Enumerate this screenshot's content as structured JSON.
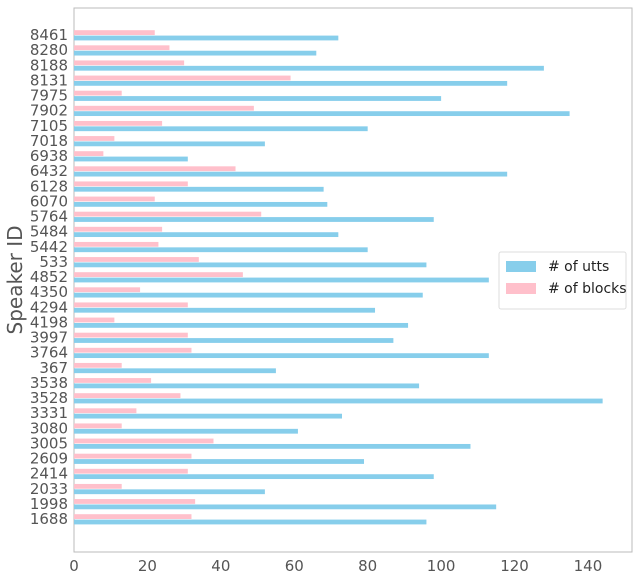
{
  "chart_data": {
    "type": "bar",
    "orientation": "horizontal",
    "title": "",
    "xlabel": "",
    "ylabel": "Speaker ID",
    "xlim": [
      0,
      152
    ],
    "xticks": [
      0,
      20,
      40,
      60,
      80,
      100,
      120,
      140
    ],
    "grid": false,
    "legend_position": "right",
    "categories": [
      "1688",
      "1998",
      "2033",
      "2414",
      "2609",
      "3005",
      "3080",
      "3331",
      "3528",
      "3538",
      "367",
      "3764",
      "3997",
      "4198",
      "4294",
      "4350",
      "4852",
      "533",
      "5442",
      "5484",
      "5764",
      "6070",
      "6128",
      "6432",
      "6938",
      "7018",
      "7105",
      "7902",
      "7975",
      "8131",
      "8188",
      "8280",
      "8461"
    ],
    "series": [
      {
        "name": "# of utts",
        "color": "#87ceeb",
        "values": [
          96,
          115,
          52,
          98,
          79,
          108,
          61,
          73,
          144,
          94,
          55,
          113,
          87,
          91,
          82,
          95,
          113,
          96,
          80,
          72,
          98,
          69,
          68,
          118,
          31,
          52,
          80,
          135,
          100,
          118,
          128,
          66,
          72
        ]
      },
      {
        "name": "# of blocks",
        "color": "#ffc0cb",
        "values": [
          32,
          33,
          13,
          31,
          32,
          38,
          13,
          17,
          29,
          21,
          13,
          32,
          31,
          11,
          31,
          18,
          46,
          34,
          23,
          24,
          51,
          22,
          31,
          44,
          8,
          11,
          24,
          49,
          13,
          59,
          30,
          26,
          22
        ]
      }
    ]
  }
}
